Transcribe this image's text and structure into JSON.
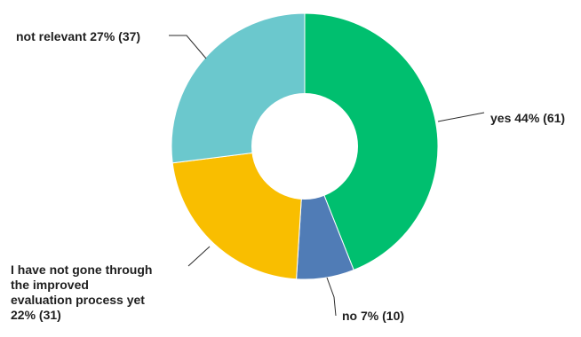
{
  "chart_data": {
    "type": "pie",
    "style": "donut",
    "title": "",
    "slices": [
      {
        "label": "yes",
        "percent": 44,
        "count": 61,
        "color": "#00bf6f",
        "display_lines": [
          "yes 44% (61)"
        ]
      },
      {
        "label": "no",
        "percent": 7,
        "count": 10,
        "color": "#507cb6",
        "display_lines": [
          "no 7% (10)"
        ]
      },
      {
        "label": "I have not gone through the improved evaluation process yet",
        "percent": 22,
        "count": 31,
        "color": "#f9be00",
        "display_lines": [
          "I have not gone through",
          "the improved",
          "evaluation process yet",
          "22% (31)"
        ]
      },
      {
        "label": "not relevant",
        "percent": 27,
        "count": 37,
        "color": "#6bc8cd",
        "display_lines": [
          "not relevant 27% (37)"
        ]
      }
    ],
    "legend": "none"
  }
}
